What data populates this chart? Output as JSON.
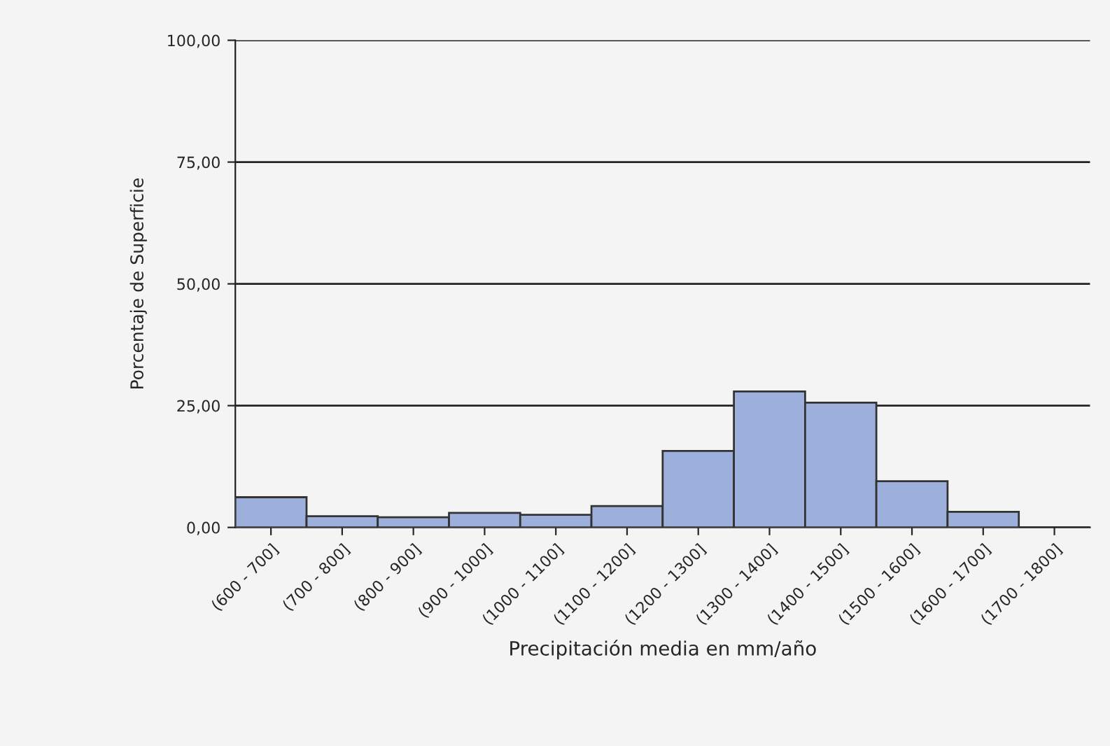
{
  "chart_data": {
    "type": "bar",
    "xlabel": "Precipitación media en mm/año",
    "ylabel": "Porcentaje de Superficie",
    "categories": [
      "(600 - 700]",
      "(700 - 800]",
      "(800 - 900]",
      "(900 - 1000]",
      "(1000 - 1100]",
      "(1100 - 1200]",
      "(1200 - 1300]",
      "(1300 - 1400]",
      "(1400 - 1500]",
      "(1500 - 1600]",
      "(1600 - 1700]",
      "(1700 - 1800]"
    ],
    "values": [
      6.2,
      2.3,
      2.1,
      3.0,
      2.6,
      4.4,
      15.7,
      27.9,
      25.6,
      9.5,
      3.2,
      null
    ],
    "color": "#9db0dc",
    "ylim": [
      0,
      100
    ],
    "yticks": [
      {
        "value": 0,
        "label": "0,00"
      },
      {
        "value": 25,
        "label": "25,00"
      },
      {
        "value": 50,
        "label": "50,00"
      },
      {
        "value": 75,
        "label": "75,00"
      },
      {
        "value": 100,
        "label": "100,00"
      }
    ],
    "grid": "y",
    "legend": false
  }
}
